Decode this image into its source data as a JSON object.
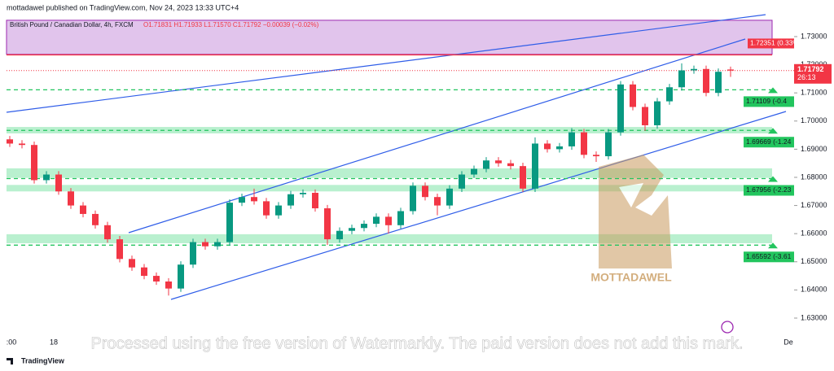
{
  "header": {
    "publisher": "mottadawel published on TradingView.com, Nov 24, 2023 13:33 UTC+4",
    "legend": "British Pound / Canadian Dollar, 4h, FXCM",
    "ohlc": "O1.71831 H1.71933 L1.71570 C1.71792 −0.00039 (−0.02%)"
  },
  "chart_data": {
    "type": "candlestick",
    "ylim": [
      1.6245,
      1.743
    ],
    "yticks": [
      {
        "value": 1.73,
        "label": "1.73000"
      },
      {
        "value": 1.72,
        "label": "1.72000"
      },
      {
        "value": 1.71,
        "label": "1.71000"
      },
      {
        "value": 1.7,
        "label": "1.70000"
      },
      {
        "value": 1.69,
        "label": "1.69000"
      },
      {
        "value": 1.68,
        "label": "1.68000"
      },
      {
        "value": 1.67,
        "label": "1.67000"
      },
      {
        "value": 1.66,
        "label": "1.66000"
      },
      {
        "value": 1.65,
        "label": "1.65000"
      },
      {
        "value": 1.64,
        "label": "1.64000"
      },
      {
        "value": 1.63,
        "label": "1.63000"
      }
    ],
    "xtick_labels": [
      ":00",
      "18",
      "De"
    ],
    "up_color": "#089981",
    "down_color": "#f23645",
    "open": [
      1.6935,
      1.692,
      1.6915,
      1.679,
      1.681,
      1.675,
      1.67,
      1.667,
      1.663,
      1.658,
      1.651,
      1.648,
      1.645,
      1.643,
      1.6405,
      1.649,
      1.657,
      1.6555,
      1.657,
      1.671,
      1.673,
      1.6715,
      1.6665,
      1.67,
      1.674,
      1.6745,
      1.669,
      1.658,
      1.661,
      1.662,
      1.6635,
      1.666,
      1.663,
      1.668,
      1.677,
      1.673,
      1.67,
      1.676,
      1.681,
      1.683,
      1.686,
      1.685,
      1.684,
      1.676,
      1.692,
      1.69,
      1.691,
      1.696,
      1.688,
      1.6875,
      1.696,
      1.713,
      1.705,
      1.6985,
      1.707,
      1.712,
      1.718,
      1.7185,
      1.71,
      1.71831
    ],
    "high": [
      1.6947,
      1.6932,
      1.6927,
      1.6822,
      1.6822,
      1.6762,
      1.6712,
      1.6682,
      1.6642,
      1.6592,
      1.6522,
      1.6492,
      1.6462,
      1.6442,
      1.6502,
      1.6582,
      1.6582,
      1.6582,
      1.6722,
      1.6742,
      1.676,
      1.6727,
      1.6712,
      1.6752,
      1.6757,
      1.6757,
      1.6702,
      1.6622,
      1.6632,
      1.6647,
      1.6672,
      1.6672,
      1.6692,
      1.6782,
      1.6782,
      1.6742,
      1.6772,
      1.6822,
      1.6842,
      1.6872,
      1.6872,
      1.6862,
      1.6852,
      1.6942,
      1.6932,
      1.6922,
      1.6975,
      1.6972,
      1.6892,
      1.6972,
      1.7142,
      1.7142,
      1.7062,
      1.7082,
      1.7132,
      1.7205,
      1.7197,
      1.7197,
      1.7187,
      1.71933
    ],
    "low": [
      1.6908,
      1.6903,
      1.6778,
      1.6778,
      1.6738,
      1.6688,
      1.6658,
      1.6618,
      1.6568,
      1.6498,
      1.6468,
      1.6438,
      1.6418,
      1.638,
      1.6393,
      1.6478,
      1.6543,
      1.6543,
      1.6558,
      1.6698,
      1.6703,
      1.6653,
      1.6653,
      1.6688,
      1.6728,
      1.6678,
      1.656,
      1.6568,
      1.6598,
      1.6608,
      1.6623,
      1.66,
      1.6618,
      1.6668,
      1.6718,
      1.6665,
      1.6688,
      1.6748,
      1.6798,
      1.6818,
      1.6838,
      1.6828,
      1.6748,
      1.6748,
      1.6888,
      1.6888,
      1.6898,
      1.6868,
      1.6855,
      1.6863,
      1.6948,
      1.7038,
      1.6965,
      1.6973,
      1.7058,
      1.7108,
      1.7168,
      1.7088,
      1.7088,
      1.7157
    ],
    "close": [
      1.692,
      1.6915,
      1.679,
      1.681,
      1.675,
      1.67,
      1.667,
      1.663,
      1.658,
      1.651,
      1.648,
      1.645,
      1.643,
      1.6405,
      1.649,
      1.657,
      1.6555,
      1.657,
      1.671,
      1.673,
      1.6715,
      1.6665,
      1.67,
      1.674,
      1.6745,
      1.669,
      1.658,
      1.661,
      1.662,
      1.6635,
      1.666,
      1.663,
      1.668,
      1.677,
      1.673,
      1.67,
      1.676,
      1.681,
      1.683,
      1.686,
      1.685,
      1.684,
      1.676,
      1.692,
      1.69,
      1.691,
      1.696,
      1.688,
      1.6875,
      1.696,
      1.713,
      1.705,
      1.6985,
      1.707,
      1.712,
      1.718,
      1.7185,
      1.71,
      1.7175,
      1.71792
    ],
    "purple_zone": [
      1.7358,
      1.7237
    ],
    "green_zones": [
      [
        1.6979,
        1.6956
      ],
      [
        1.6832,
        1.6798
      ],
      [
        1.6773,
        1.675
      ],
      [
        1.6598,
        1.6566
      ]
    ],
    "levels": [
      {
        "value": 1.71109,
        "label": "1.71109 (-0.4"
      },
      {
        "value": 1.69669,
        "label": "1.69669 (-1.24"
      },
      {
        "value": 1.67956,
        "label": "1.67956 (-2.23"
      },
      {
        "value": 1.65592,
        "label": "1.65592 (-3.61"
      }
    ],
    "target": {
      "value": 1.72351,
      "label": "1.72351 (0.33%"
    },
    "last_price": {
      "value": 1.71792,
      "label": "1.71792",
      "countdown": "26:13"
    }
  },
  "watermark": {
    "logo": "MOTTADAWEL",
    "notice": "Processed using the free version of Watermarkly. The paid version does not add this mark."
  },
  "footer": "TradingView"
}
